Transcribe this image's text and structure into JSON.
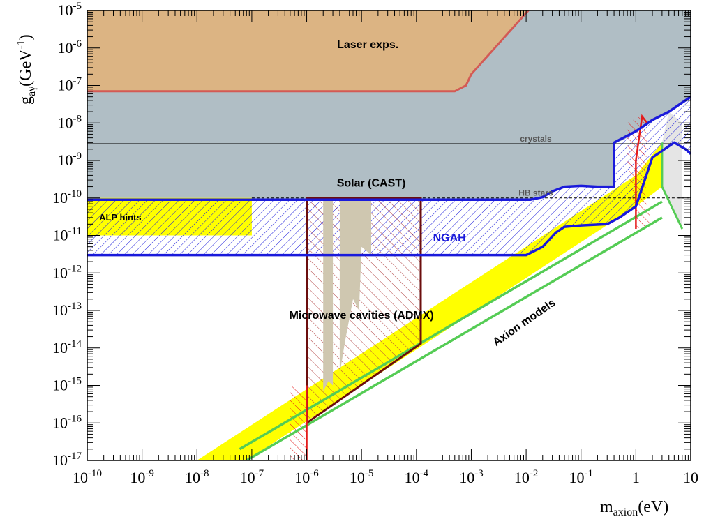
{
  "chart_data": {
    "type": "area",
    "title": "",
    "xlabel": {
      "main": "m",
      "sub": "axion",
      "unit": "(eV)"
    },
    "ylabel": {
      "main": "g",
      "sub": "aγ",
      "unit_pre": "(GeV",
      "unit_exp": "-1",
      "unit_post": ")"
    },
    "x_scale": "log",
    "y_scale": "log",
    "xlim": [
      1e-10,
      10
    ],
    "ylim": [
      1e-17,
      1e-05
    ],
    "grid": false,
    "x_ticks": [
      {
        "value": 1e-10,
        "base": "10",
        "exp": "-10"
      },
      {
        "value": 1e-09,
        "base": "10",
        "exp": "-9"
      },
      {
        "value": 1e-08,
        "base": "10",
        "exp": "-8"
      },
      {
        "value": 1e-07,
        "base": "10",
        "exp": "-7"
      },
      {
        "value": 1e-06,
        "base": "10",
        "exp": "-6"
      },
      {
        "value": 1e-05,
        "base": "10",
        "exp": "-5"
      },
      {
        "value": 0.0001,
        "base": "10",
        "exp": "-4"
      },
      {
        "value": 0.001,
        "base": "10",
        "exp": "-3"
      },
      {
        "value": 0.01,
        "base": "10",
        "exp": "-2"
      },
      {
        "value": 0.1,
        "base": "10",
        "exp": "-1"
      },
      {
        "value": 1,
        "base": "1",
        "exp": ""
      },
      {
        "value": 10,
        "base": "10",
        "exp": ""
      }
    ],
    "y_ticks": [
      {
        "value": 1e-17,
        "base": "10",
        "exp": "-17"
      },
      {
        "value": 1e-16,
        "base": "10",
        "exp": "-16"
      },
      {
        "value": 1e-15,
        "base": "10",
        "exp": "-15"
      },
      {
        "value": 1e-14,
        "base": "10",
        "exp": "-14"
      },
      {
        "value": 1e-13,
        "base": "10",
        "exp": "-13"
      },
      {
        "value": 1e-12,
        "base": "10",
        "exp": "-12"
      },
      {
        "value": 1e-11,
        "base": "10",
        "exp": "-11"
      },
      {
        "value": 1e-10,
        "base": "10",
        "exp": "-10"
      },
      {
        "value": 1e-09,
        "base": "10",
        "exp": "-9"
      },
      {
        "value": 1e-08,
        "base": "10",
        "exp": "-8"
      },
      {
        "value": 1e-07,
        "base": "10",
        "exp": "-7"
      },
      {
        "value": 1e-06,
        "base": "10",
        "exp": "-6"
      },
      {
        "value": 1e-05,
        "base": "10",
        "exp": "-5"
      }
    ],
    "colors": {
      "laser": "#dcb483",
      "laser_edge": "#d35a55",
      "cast": "#b0bec5",
      "ngah": "#1a1adb",
      "yellow": "#ffff00",
      "admx_edge": "#6b0d0d",
      "admx_hatch": "#b04040",
      "admx_excl": "#cfc7b0",
      "green": "#55cc55",
      "red": "#e41b1b",
      "grey_region": "#e5e5e5"
    },
    "regions": [
      {
        "name": "Laser exps.",
        "points": [
          [
            1e-10,
            1e-05
          ],
          [
            1e-10,
            7e-08
          ],
          [
            0.0005,
            7e-08
          ],
          [
            0.0008,
            1e-07
          ],
          [
            0.001,
            2e-07
          ],
          [
            0.011,
            1e-05
          ]
        ]
      },
      {
        "name": "Solar (CAST)",
        "points": [
          [
            1e-10,
            1e-05
          ],
          [
            1e-10,
            9e-11
          ],
          [
            0.012,
            9e-11
          ],
          [
            0.02,
            1.05e-10
          ],
          [
            0.03,
            1.5e-10
          ],
          [
            0.05,
            2e-10
          ],
          [
            0.1,
            2.1e-10
          ],
          [
            0.2,
            2e-10
          ],
          [
            0.35,
            2e-10
          ],
          [
            0.4,
            2e-10
          ],
          [
            0.4,
            3e-09
          ],
          [
            0.6,
            3.5e-09
          ],
          [
            1,
            6e-09
          ],
          [
            2,
            1.2e-08
          ],
          [
            4,
            2e-08
          ],
          [
            7,
            3.5e-08
          ],
          [
            10,
            5e-08
          ],
          [
            10,
            1e-05
          ]
        ]
      },
      {
        "name": "NGAH",
        "points": [
          [
            1e-10,
            9e-11
          ],
          [
            0.012,
            9e-11
          ],
          [
            0.02,
            1.05e-10
          ],
          [
            0.03,
            1.5e-10
          ],
          [
            0.05,
            2e-10
          ],
          [
            0.1,
            2.1e-10
          ],
          [
            0.2,
            2e-10
          ],
          [
            0.4,
            2e-10
          ],
          [
            0.4,
            3e-09
          ],
          [
            1,
            6e-09
          ],
          [
            2,
            1.2e-08
          ],
          [
            4,
            2e-08
          ],
          [
            7,
            3.5e-08
          ],
          [
            10,
            5e-08
          ],
          [
            10,
            1.5e-09
          ],
          [
            8,
            2e-09
          ],
          [
            5,
            3e-09
          ],
          [
            2,
            1.2e-09
          ],
          [
            1,
            6e-11
          ],
          [
            0.5,
            3e-11
          ],
          [
            0.3,
            2e-11
          ],
          [
            0.1,
            1.85e-11
          ],
          [
            0.05,
            1.7e-11
          ],
          [
            0.035,
            1.2e-11
          ],
          [
            0.02,
            5e-12
          ],
          [
            0.01,
            3e-12
          ],
          [
            1e-10,
            3e-12
          ]
        ]
      },
      {
        "name": "ALP hints",
        "points": [
          [
            1e-10,
            1e-10
          ],
          [
            1e-07,
            1e-10
          ],
          [
            1e-07,
            1e-11
          ],
          [
            1e-10,
            1e-11
          ]
        ]
      },
      {
        "name": "Axion models",
        "points": [
          [
            1e-08,
            1e-17
          ],
          [
            8e-08,
            1e-17
          ],
          [
            1,
            6e-11
          ],
          [
            3,
            2e-10
          ],
          [
            3,
            3e-09
          ],
          [
            1,
            4e-10
          ]
        ]
      },
      {
        "name": "Microwave cavities (ADMX)",
        "points": [
          [
            1e-06,
            1e-10
          ],
          [
            0.00012,
            1e-10
          ],
          [
            0.00012,
            1.3e-14
          ],
          [
            1e-06,
            1e-16
          ]
        ]
      }
    ],
    "lines": [
      {
        "name": "crystals",
        "style": "solid",
        "y": 2.8e-09,
        "x": [
          1e-10,
          10
        ]
      },
      {
        "name": "HB stars",
        "style": "dashed",
        "y": 1e-10,
        "x": [
          1e-07,
          10
        ]
      },
      {
        "name": "axion-model-line-1",
        "style": "green",
        "points": [
          [
            6e-08,
            2e-17
          ],
          [
            3,
            8e-11
          ]
        ]
      },
      {
        "name": "axion-model-line-2",
        "style": "green",
        "points": [
          [
            8e-08,
            1e-17
          ],
          [
            3,
            3e-11
          ]
        ]
      }
    ],
    "annotations": [
      {
        "text": "Laser exps.",
        "x": 1.3e-05,
        "y": 1e-06
      },
      {
        "text": "Solar (CAST)",
        "x": 1.5e-05,
        "y": 2e-10
      },
      {
        "text": "crystals",
        "x": 0.015,
        "y": 3.2e-09
      },
      {
        "text": "HB stars",
        "x": 0.015,
        "y": 1.15e-10
      },
      {
        "text": "ALP hints",
        "x": 4e-10,
        "y": 2.5e-11
      },
      {
        "text": "NGAH",
        "x": 0.0004,
        "y": 7e-12
      },
      {
        "text": "Microwave cavities (ADMX)",
        "x": 1e-05,
        "y": 6e-14
      },
      {
        "text": "Axion models",
        "x": 0.01,
        "y": 4e-14
      }
    ]
  }
}
